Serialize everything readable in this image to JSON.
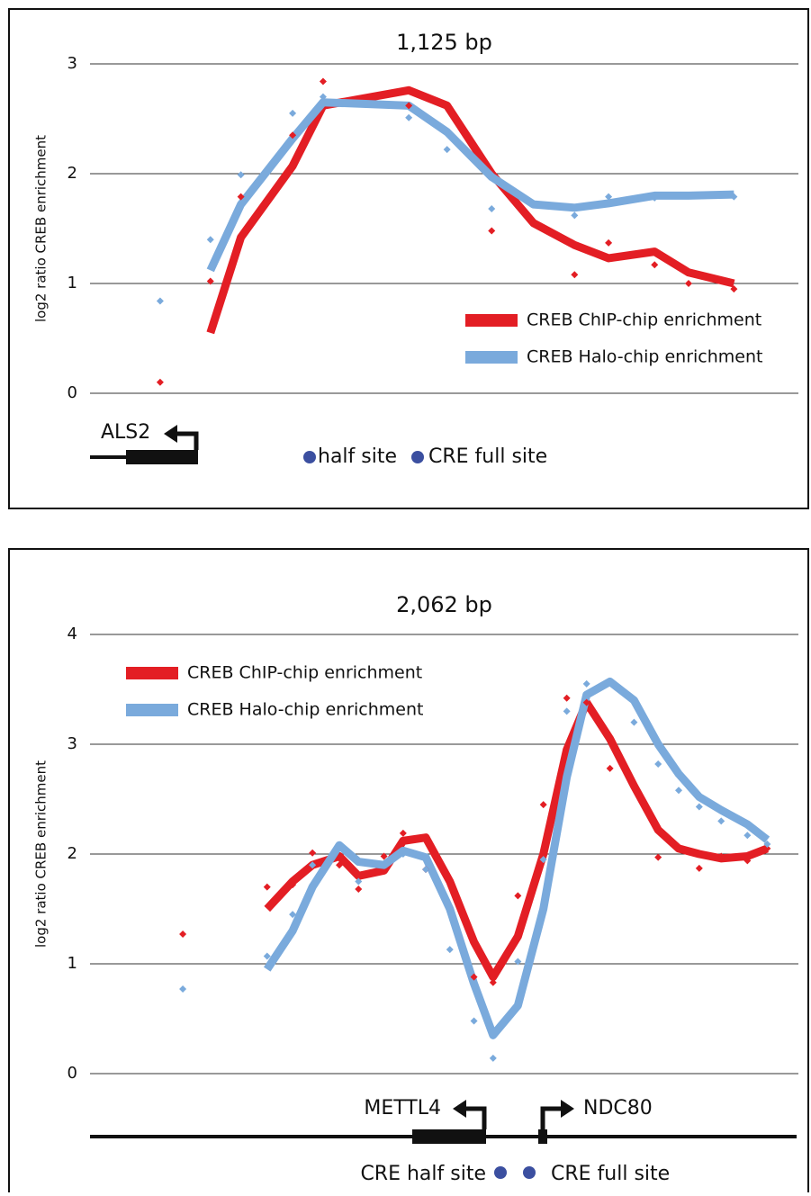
{
  "chart_data": [
    {
      "type": "line",
      "title": "1,125 bp",
      "ylabel": "log2 ratio CREB enrichment",
      "x": [
        9.9,
        17.0,
        21.3,
        28.6,
        32.9,
        45.0,
        50.4,
        56.7,
        62.6,
        68.4,
        73.2,
        79.7,
        84.5,
        90.9
      ],
      "xlim": [
        0,
        100
      ],
      "ylim": [
        0,
        3
      ],
      "yticks": [
        0,
        1,
        2,
        3
      ],
      "grid": true,
      "legend": "lower right",
      "series": [
        {
          "name": "CREB ChIP-chip enrichment",
          "color": "#e31e24",
          "values": [
            null,
            0.55,
            1.42,
            2.07,
            2.62,
            2.76,
            2.62,
            2.0,
            1.55,
            1.35,
            1.23,
            1.29,
            1.1,
            1.0
          ],
          "points": [
            0.1,
            1.02,
            1.79,
            2.35,
            2.84,
            2.62,
            null,
            1.48,
            null,
            1.08,
            1.37,
            1.17,
            1.0,
            0.95
          ]
        },
        {
          "name": "CREB Halo-chip enrichment",
          "color": "#7aaadc",
          "values": [
            null,
            1.12,
            1.72,
            2.32,
            2.65,
            2.62,
            2.38,
            1.97,
            1.72,
            1.69,
            1.73,
            1.8,
            1.8,
            1.81
          ],
          "points": [
            0.84,
            1.4,
            1.99,
            2.55,
            2.7,
            2.51,
            2.22,
            1.68,
            null,
            1.62,
            1.79,
            1.78,
            1.8,
            1.79
          ]
        }
      ],
      "annotations": [
        "ALS2",
        "half site",
        "CRE full site"
      ]
    },
    {
      "type": "line",
      "title": "2,062 bp",
      "ylabel": "log2 ratio CREB enrichment",
      "x": [
        13.1,
        25.0,
        28.6,
        31.4,
        35.2,
        37.9,
        41.5,
        44.2,
        47.4,
        50.8,
        54.2,
        56.9,
        60.4,
        64.0,
        67.3,
        70.1,
        73.4,
        76.8,
        80.2,
        83.1,
        86.0,
        89.1,
        92.8,
        95.6
      ],
      "xlim": [
        0,
        100
      ],
      "ylim": [
        0,
        4
      ],
      "yticks": [
        0,
        1,
        2,
        3,
        4
      ],
      "grid": true,
      "legend": "upper left",
      "series": [
        {
          "name": "CREB ChIP-chip enrichment",
          "color": "#e31e24",
          "values": [
            null,
            1.5,
            1.75,
            1.9,
            1.98,
            1.8,
            1.85,
            2.12,
            2.15,
            1.75,
            1.2,
            0.88,
            1.25,
            2.0,
            2.95,
            3.38,
            3.05,
            2.62,
            2.22,
            2.05,
            2.0,
            1.96,
            1.98,
            2.05
          ],
          "points": [
            1.27,
            1.7,
            1.72,
            2.01,
            1.9,
            1.68,
            1.98,
            2.19,
            1.86,
            null,
            0.88,
            0.83,
            1.62,
            2.45,
            3.42,
            3.38,
            2.78,
            null,
            1.97,
            2.05,
            1.87,
            1.98,
            1.94,
            2.05
          ]
        },
        {
          "name": "CREB Halo-chip enrichment",
          "color": "#7aaadc",
          "values": [
            null,
            0.95,
            1.3,
            1.7,
            2.08,
            1.93,
            1.9,
            2.03,
            1.97,
            1.5,
            0.82,
            0.35,
            0.62,
            1.5,
            2.7,
            3.45,
            3.57,
            3.4,
            3.0,
            2.73,
            2.52,
            2.4,
            2.27,
            2.13
          ],
          "points": [
            0.77,
            1.07,
            1.45,
            1.9,
            2.07,
            1.75,
            1.9,
            2.0,
            1.86,
            1.13,
            0.48,
            0.14,
            1.02,
            1.95,
            3.3,
            3.55,
            null,
            3.2,
            2.82,
            2.58,
            2.43,
            2.3,
            2.17,
            2.09
          ]
        }
      ],
      "annotations": [
        "METTL4",
        "NDC80",
        "CRE half site",
        "CRE full site"
      ]
    }
  ]
}
